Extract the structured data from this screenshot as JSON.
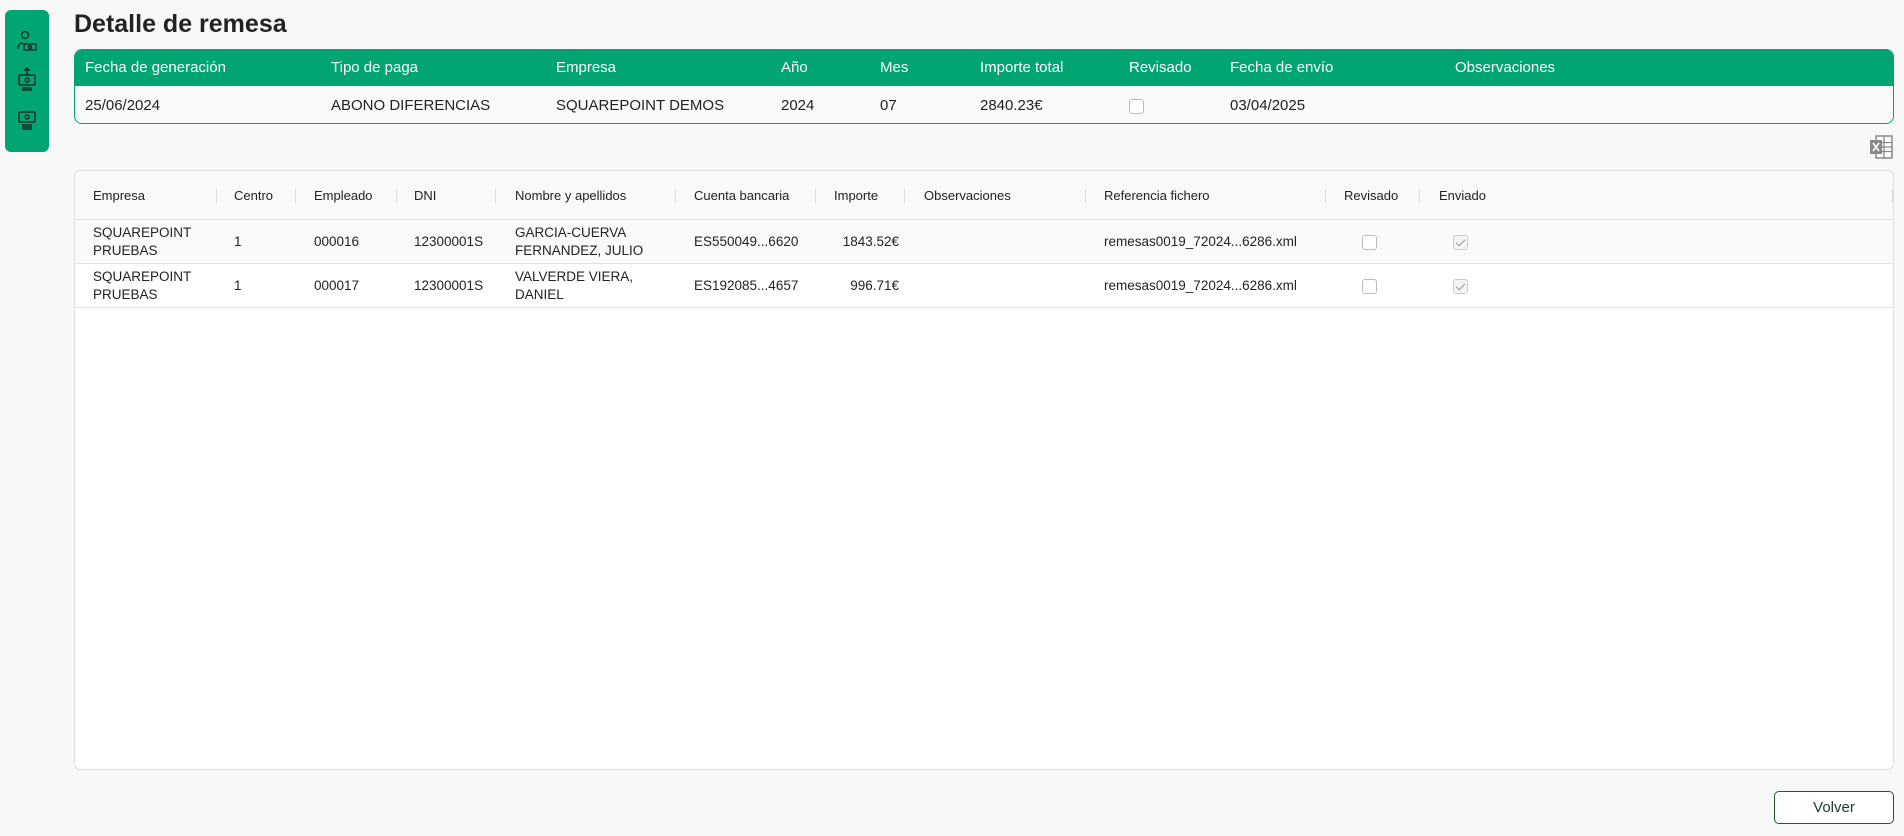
{
  "sidebar": {
    "items": [
      {
        "icon": "user-money-icon"
      },
      {
        "icon": "money-upload-icon"
      },
      {
        "icon": "money-stack-icon"
      }
    ]
  },
  "page": {
    "title": "Detalle de remesa"
  },
  "summary": {
    "headers": [
      "Fecha de generación",
      "Tipo de paga",
      "Empresa",
      "Año",
      "Mes",
      "Importe total",
      "Revisado",
      "Fecha de envío",
      "Observaciones"
    ],
    "row": {
      "fecha_generacion": "25/06/2024",
      "tipo_paga": "ABONO DIFERENCIAS",
      "empresa": "SQUAREPOINT DEMOS",
      "anio": "2024",
      "mes": "07",
      "importe_total": "2840.23€",
      "revisado": false,
      "fecha_envio": "03/04/2025",
      "observaciones": ""
    }
  },
  "toolbar": {
    "export_icon": "excel-icon"
  },
  "table": {
    "headers": [
      "Empresa",
      "Centro",
      "Empleado",
      "DNI",
      "Nombre y apellidos",
      "Cuenta bancaria",
      "Importe",
      "Observaciones",
      "Referencia fichero",
      "Revisado",
      "Enviado"
    ],
    "rows": [
      {
        "empresa": "SQUAREPOINT PRUEBAS",
        "centro": "1",
        "empleado": "000016",
        "dni": "12300001S",
        "nombre": "GARCIA-CUERVA FERNANDEZ, JULIO",
        "cuenta": "ES550049...6620",
        "importe": "1843.52€",
        "observaciones": "",
        "referencia": "remesas0019_72024...6286.xml",
        "revisado": false,
        "enviado": true
      },
      {
        "empresa": "SQUAREPOINT PRUEBAS",
        "centro": "1",
        "empleado": "000017",
        "dni": "12300001S",
        "nombre": "VALVERDE VIERA, DANIEL",
        "cuenta": "ES192085...4657",
        "importe": "996.71€",
        "observaciones": "",
        "referencia": "remesas0019_72024...6286.xml",
        "revisado": false,
        "enviado": true
      }
    ]
  },
  "footer": {
    "back_label": "Volver"
  },
  "colors": {
    "accent": "#00a572",
    "button_border": "#1b5e20"
  }
}
